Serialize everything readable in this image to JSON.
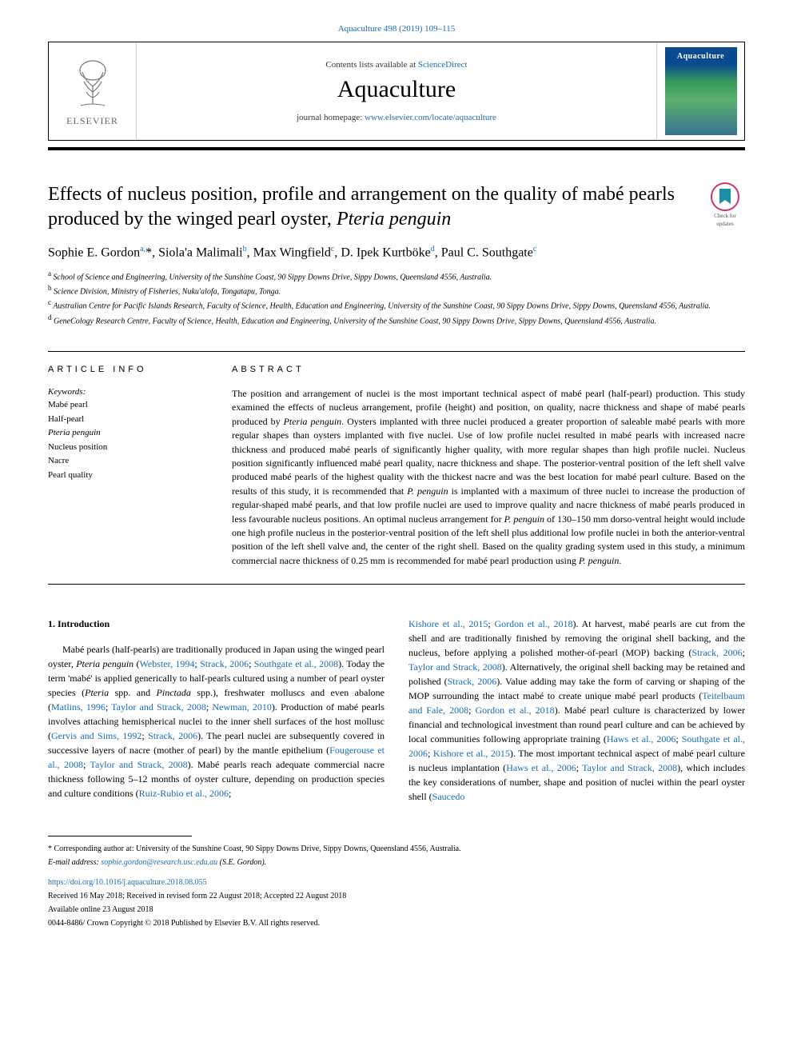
{
  "journal_ref_text": "Aquaculture 498 (2019) 109–115",
  "header": {
    "contents_prefix": "Contents lists available at ",
    "contents_link": "ScienceDirect",
    "journal_name": "Aquaculture",
    "homepage_prefix": "journal homepage: ",
    "homepage_link": "www.elsevier.com/locate/aquaculture",
    "elsevier_label": "ELSEVIER",
    "cover_label": "Aquaculture"
  },
  "check_updates": {
    "line1": "Check for",
    "line2": "updates"
  },
  "title_pre": "Effects of nucleus position, profile and arrangement on the quality of mabé pearls produced by the winged pearl oyster, ",
  "title_em": "Pteria penguin",
  "authors_html": "Sophie E. Gordon<sup>a,</sup>*, Siola'a Malimali<sup>b</sup>, Max Wingfield<sup>c</sup>, D. Ipek Kurtböke<sup>d</sup>, Paul C. Southgate<sup>c</sup>",
  "affiliations": [
    "a School of Science and Engineering, University of the Sunshine Coast, 90 Sippy Downs Drive, Sippy Downs, Queensland 4556, Australia.",
    "b Science Division, Ministry of Fisheries, Nuku'alofa, Tongatapu, Tonga.",
    "c Australian Centre for Pacific Islands Research, Faculty of Science, Health, Education and Engineering, University of the Sunshine Coast, 90 Sippy Downs Drive, Sippy Downs, Queensland 4556, Australia.",
    "d GeneCology Research Centre, Faculty of Science, Health, Education and Engineering, University of the Sunshine Coast, 90 Sippy Downs Drive, Sippy Downs, Queensland 4556, Australia."
  ],
  "article_info_heading": "ARTICLE INFO",
  "abstract_heading": "ABSTRACT",
  "keywords_label": "Keywords:",
  "keywords": [
    "Mabé pearl",
    "Half-pearl",
    "Pteria penguin",
    "Nucleus position",
    "Nacre",
    "Pearl quality"
  ],
  "abstract_html": "The position and arrangement of nuclei is the most important technical aspect of mabé pearl (half-pearl) production. This study examined the effects of nucleus arrangement, profile (height) and position, on quality, nacre thickness and shape of mabé pearls produced by <em>Pteria penguin</em>. Oysters implanted with three nuclei produced a greater proportion of saleable mabé pearls with more regular shapes than oysters implanted with five nuclei. Use of low profile nuclei resulted in mabé pearls with increased nacre thickness and produced mabé pearls of significantly higher quality, with more regular shapes than high profile nuclei. Nucleus position significantly influenced mabé pearl quality, nacre thickness and shape. The posterior-ventral position of the left shell valve produced mabé pearls of the highest quality with the thickest nacre and was the best location for mabé pearl culture. Based on the results of this study, it is recommended that <em>P. penguin</em> is implanted with a maximum of three nuclei to increase the production of regular-shaped mabé pearls, and that low profile nuclei are used to improve quality and nacre thickness of mabé pearls produced in less favourable nucleus positions. An optimal nucleus arrangement for <em>P. penguin</em> of 130–150 mm dorso-ventral height would include one high profile nucleus in the posterior-ventral position of the left shell plus additional low profile nuclei in both the anterior-ventral position of the left shell valve and, the center of the right shell. Based on the quality grading system used in this study, a minimum commercial nacre thickness of 0.25 mm is recommended for mabé pearl production using <em>P. penguin</em>.",
  "intro_heading": "1. Introduction",
  "intro_col1_html": "Mabé pearls (half-pearls) are traditionally produced in Japan using the winged pearl oyster, <em>Pteria penguin</em> (<a class='ref' href='#'>Webster, 1994</a>; <a class='ref' href='#'>Strack, 2006</a>; <a class='ref' href='#'>Southgate et al., 2008</a>). Today the term 'mabé' is applied generically to half-pearls cultured using a number of pearl oyster species (<em>Pteria</em> spp. and <em>Pinctada</em> spp.), freshwater molluscs and even abalone (<a class='ref' href='#'>Matlins, 1996</a>; <a class='ref' href='#'>Taylor and Strack, 2008</a>; <a class='ref' href='#'>Newman, 2010</a>). Production of mabé pearls involves attaching hemispherical nuclei to the inner shell surfaces of the host mollusc (<a class='ref' href='#'>Gervis and Sims, 1992</a>; <a class='ref' href='#'>Strack, 2006</a>). The pearl nuclei are subsequently covered in successive layers of nacre (mother of pearl) by the mantle epithelium (<a class='ref' href='#'>Fougerouse et al., 2008</a>; <a class='ref' href='#'>Taylor and Strack, 2008</a>). Mabé pearls reach adequate commercial nacre thickness following 5–12 months of oyster culture, depending on production species and culture conditions (<a class='ref' href='#'>Ruiz-Rubio et al., 2006</a>;",
  "intro_col2_html": "<a class='ref' href='#'>Kishore et al., 2015</a>; <a class='ref' href='#'>Gordon et al., 2018</a>). At harvest, mabé pearls are cut from the shell and are traditionally finished by removing the original shell backing, and the nucleus, before applying a polished mother-of-pearl (MOP) backing (<a class='ref' href='#'>Strack, 2006</a>; <a class='ref' href='#'>Taylor and Strack, 2008</a>). Alternatively, the original shell backing may be retained and polished (<a class='ref' href='#'>Strack, 2006</a>). Value adding may take the form of carving or shaping of the MOP surrounding the intact mabé to create unique mabé pearl products (<a class='ref' href='#'>Teitelbaum and Fale, 2008</a>; <a class='ref' href='#'>Gordon et al., 2018</a>). Mabé pearl culture is characterized by lower financial and technological investment than round pearl culture and can be achieved by local communities following appropriate training (<a class='ref' href='#'>Haws et al., 2006</a>; <a class='ref' href='#'>Southgate et al., 2006</a>; <a class='ref' href='#'>Kishore et al., 2015</a>). The most important technical aspect of mabé pearl culture is nucleus implantation (<a class='ref' href='#'>Haws et al., 2006</a>; <a class='ref' href='#'>Taylor and Strack, 2008</a>), which includes the key considerations of number, shape and position of nuclei within the pearl oyster shell (<a class='ref' href='#'>Saucedo</a>",
  "footer": {
    "corr": "* Corresponding author at: University of the Sunshine Coast, 90 Sippy Downs Drive, Sippy Downs, Queensland 4556, Australia.",
    "email_label": "E-mail address: ",
    "email": "sophie.gordon@research.usc.edu.au",
    "email_suffix": " (S.E. Gordon).",
    "doi": "https://doi.org/10.1016/j.aquaculture.2018.08.055",
    "dates": "Received 16 May 2018; Received in revised form 22 August 2018; Accepted 22 August 2018",
    "available": "Available online 23 August 2018",
    "copyright": "0044-8486/ Crown Copyright © 2018 Published by Elsevier B.V. All rights reserved."
  },
  "colors": {
    "link": "#1a6bb3",
    "rule": "#000000",
    "cover_top": "#0a4b8f",
    "cover_mid": "#3a9b5c"
  }
}
